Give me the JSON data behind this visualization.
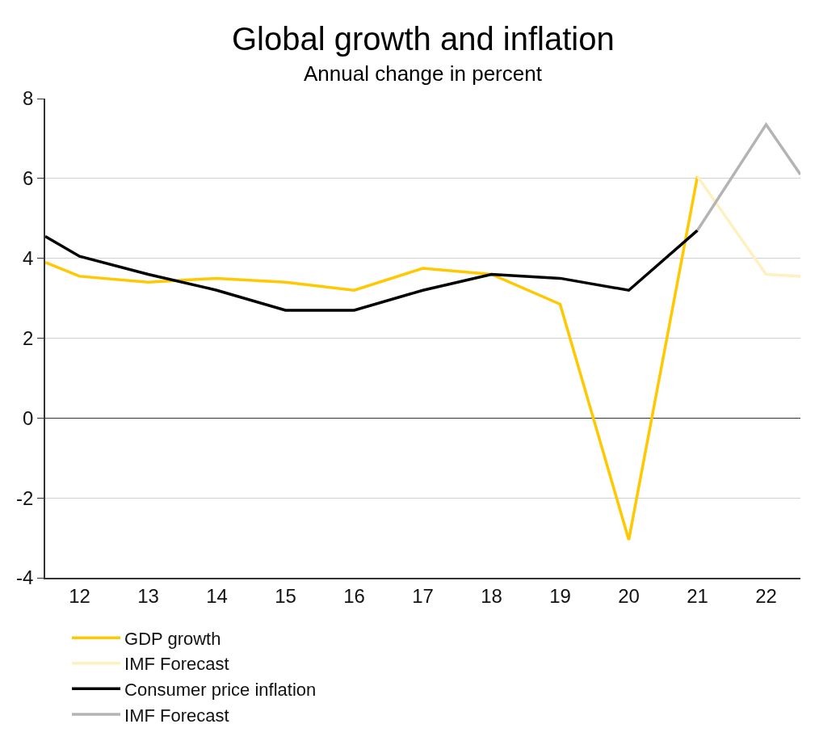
{
  "chart_data": {
    "type": "line",
    "title": "Global growth and inflation",
    "subtitle": "Annual change in percent",
    "xlim": [
      2011.5,
      2022.5
    ],
    "xticks": [
      {
        "value": 2012,
        "label": "12"
      },
      {
        "value": 2013,
        "label": "13"
      },
      {
        "value": 2014,
        "label": "14"
      },
      {
        "value": 2015,
        "label": "15"
      },
      {
        "value": 2016,
        "label": "16"
      },
      {
        "value": 2017,
        "label": "17"
      },
      {
        "value": 2018,
        "label": "18"
      },
      {
        "value": 2019,
        "label": "19"
      },
      {
        "value": 2020,
        "label": "20"
      },
      {
        "value": 2021,
        "label": "21"
      },
      {
        "value": 2022,
        "label": "22"
      }
    ],
    "ylim": [
      -4,
      8
    ],
    "yticks": [
      -4,
      -2,
      0,
      2,
      4,
      6,
      8
    ],
    "grid": "y",
    "legend": "bottom",
    "marker": "none",
    "line_style": "solid",
    "series": [
      {
        "name": "GDP growth",
        "color": "#ffc800",
        "x": [
          2011.5,
          2012,
          2013,
          2014,
          2015,
          2016,
          2017,
          2018,
          2019,
          2020,
          2021
        ],
        "values": [
          3.9,
          3.55,
          3.4,
          3.5,
          3.4,
          3.2,
          3.75,
          3.6,
          2.85,
          -3.05,
          6.05
        ]
      },
      {
        "name": "IMF Forecast",
        "color": "#fff0c0",
        "x": [
          2021,
          2022,
          2022.5
        ],
        "values": [
          6.05,
          3.6,
          3.55
        ]
      },
      {
        "name": "Consumer price inflation",
        "color": "#000000",
        "x": [
          2011.5,
          2012,
          2013,
          2014,
          2015,
          2016,
          2017,
          2018,
          2019,
          2020,
          2021
        ],
        "values": [
          4.55,
          4.05,
          3.6,
          3.2,
          2.7,
          2.7,
          3.2,
          3.6,
          3.5,
          3.2,
          4.7
        ]
      },
      {
        "name": "IMF Forecast",
        "color": "#b4b4b4",
        "x": [
          2021,
          2022,
          2022.5
        ],
        "values": [
          4.7,
          7.35,
          6.1
        ]
      }
    ]
  }
}
